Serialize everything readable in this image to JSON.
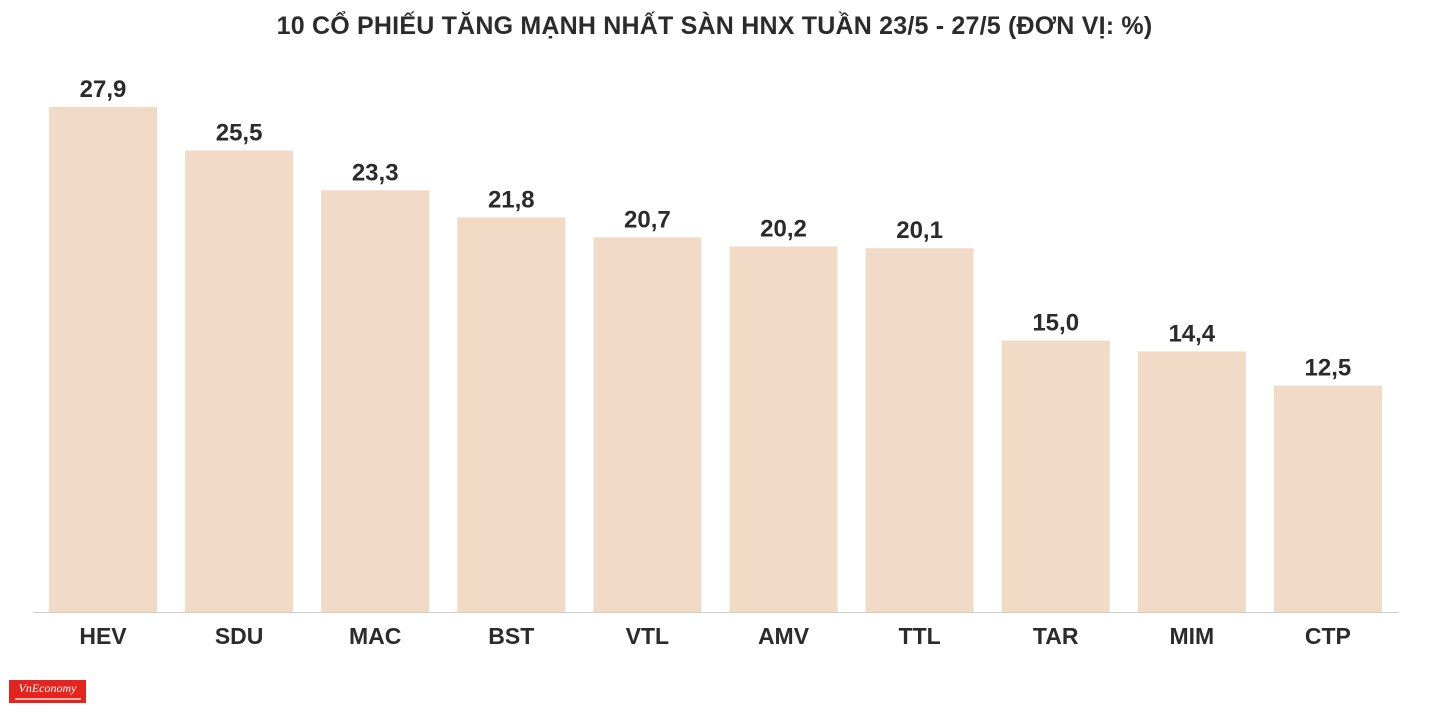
{
  "chart_data": {
    "type": "bar",
    "title": "10 CỔ PHIẾU TĂNG MẠNH NHẤT SÀN HNX TUẦN 23/5 - 27/5 (ĐƠN VỊ: %)",
    "categories": [
      "HEV",
      "SDU",
      "MAC",
      "BST",
      "VTL",
      "AMV",
      "TTL",
      "TAR",
      "MIM",
      "CTP"
    ],
    "values": [
      27.9,
      25.5,
      23.3,
      21.8,
      20.7,
      20.2,
      20.1,
      15.0,
      14.4,
      12.5
    ],
    "value_labels": [
      "27,9",
      "25,5",
      "23,3",
      "21,8",
      "20,7",
      "20,2",
      "20,1",
      "15,0",
      "14,4",
      "12,5"
    ],
    "xlabel": "",
    "ylabel": "",
    "ylim": [
      0,
      27.9
    ],
    "grid": false,
    "legend": "none",
    "colors": {
      "bar": "#f2dbc6",
      "label": "#2b2b2b",
      "axis": "#cccccc"
    }
  },
  "logo": {
    "text": "VnEconomy",
    "color": "#e4241e"
  }
}
